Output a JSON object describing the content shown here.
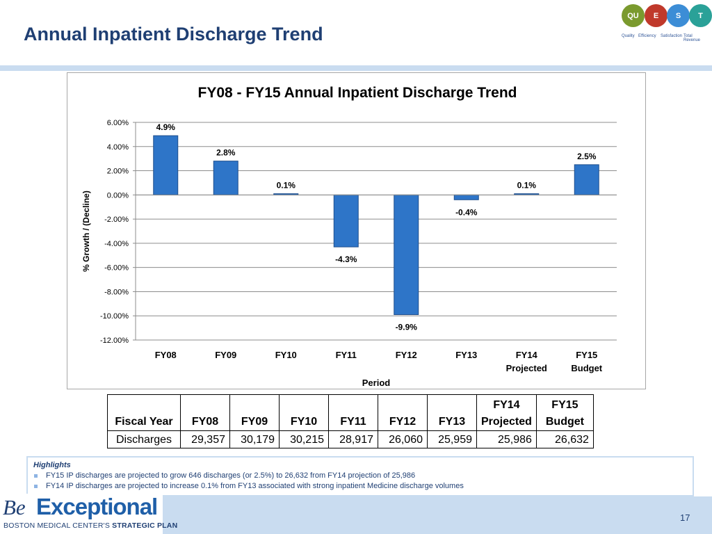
{
  "page": {
    "title": "Annual Inpatient Discharge Trend",
    "page_number": "17"
  },
  "logo": {
    "circles": [
      {
        "label": "QU",
        "color": "#7a9a2e"
      },
      {
        "label": "E",
        "color": "#c0392b"
      },
      {
        "label": "S",
        "color": "#3c8dd6"
      },
      {
        "label": "T",
        "color": "#2aa198"
      }
    ],
    "words": [
      "Quality",
      "Efficiency",
      "Satisfaction",
      "Total Revenue"
    ]
  },
  "chart_data": {
    "type": "bar",
    "title": "FY08 - FY15 Annual Inpatient Discharge Trend",
    "xlabel": "Period",
    "ylabel": "% Growth / (Decline)",
    "ylim": [
      -12,
      6
    ],
    "yticks": [
      "6.00%",
      "4.00%",
      "2.00%",
      "0.00%",
      "-2.00%",
      "-4.00%",
      "-6.00%",
      "-8.00%",
      "-10.00%",
      "-12.00%"
    ],
    "ytick_values": [
      6,
      4,
      2,
      0,
      -2,
      -4,
      -6,
      -8,
      -10,
      -12
    ],
    "categories": [
      [
        "FY08"
      ],
      [
        "FY09"
      ],
      [
        "FY10"
      ],
      [
        "FY11"
      ],
      [
        "FY12"
      ],
      [
        "FY13"
      ],
      [
        "FY14",
        "Projected"
      ],
      [
        "FY15",
        "Budget"
      ]
    ],
    "values": [
      4.9,
      2.8,
      0.1,
      -4.3,
      -9.9,
      -0.4,
      0.1,
      2.5
    ],
    "data_labels": [
      "4.9%",
      "2.8%",
      "0.1%",
      "-4.3%",
      "-9.9%",
      "-0.4%",
      "0.1%",
      "2.5%"
    ],
    "bar_color": "#2e75c8",
    "grid": true,
    "legend": "none"
  },
  "table": {
    "header_top": [
      "",
      "",
      "",
      "",
      "",
      "",
      "",
      "FY14",
      "FY15"
    ],
    "header": [
      "Fiscal Year",
      "FY08",
      "FY09",
      "FY10",
      "FY11",
      "FY12",
      "FY13",
      "Projected",
      "Budget"
    ],
    "row": [
      "Discharges",
      "29,357",
      "30,179",
      "30,215",
      "28,917",
      "26,060",
      "25,959",
      "25,986",
      "26,632"
    ]
  },
  "highlights": {
    "heading": "Highlights",
    "items": [
      "FY15 IP discharges are projected to grow 646 discharges (or 2.5%) to 26,632 from FY14 projection of 25,986",
      "FY14 IP discharges are projected to increase 0.1% from FY13 associated with strong inpatient Medicine discharge volumes"
    ]
  },
  "brand": {
    "be": "Be",
    "exceptional": "Exceptional",
    "sub_a": "BOSTON MEDICAL CENTER'S ",
    "sub_b": "STRATEGIC PLAN"
  }
}
